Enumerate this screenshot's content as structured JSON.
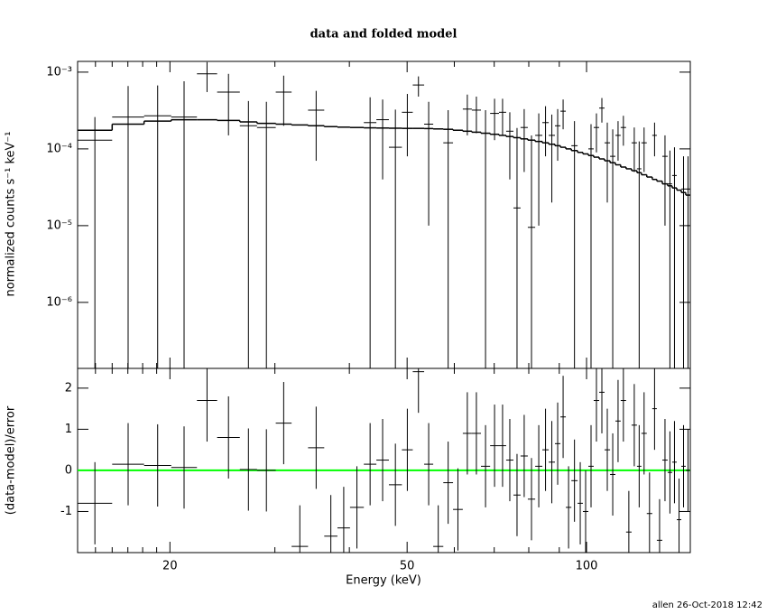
{
  "chart_data": {
    "type": "spectrum",
    "title": "data and folded model",
    "xlabel": "Energy (keV)",
    "footer": "allen 26-Oct-2018 12:42",
    "xscale": "log",
    "xlim": [
      14,
      149.3
    ],
    "xticks": [
      20,
      50,
      100
    ],
    "xminorticks": [
      15,
      16,
      17,
      18,
      19,
      30,
      40,
      60,
      70,
      80,
      90
    ],
    "bins": [
      14.0,
      16.0,
      18.1,
      20.1,
      22.2,
      24.0,
      26.2,
      28.0,
      30.1,
      32.0,
      34.1,
      36.3,
      38.2,
      40.1,
      42.3,
      44.4,
      46.6,
      49.0,
      51.1,
      53.4,
      55.3,
      57.5,
      59.7,
      62.0,
      64.2,
      66.5,
      68.9,
      71.3,
      73.3,
      75.4,
      77.5,
      79.7,
      82.0,
      84.3,
      86.4,
      88.5,
      90.4,
      92.3,
      94.3,
      96.6,
      98.6,
      100.7,
      102.8,
      105.0,
      107.2,
      109.5,
      111.8,
      114.1,
      116.5,
      119.0,
      121.5,
      123.6,
      126.2,
      128.9,
      131.2,
      134.0,
      136.8,
      139.2,
      141.7,
      144.2,
      146.7,
      149.3
    ],
    "panels": [
      {
        "ylabel": "normalized counts s⁻¹ keV⁻¹",
        "yscale": "log",
        "ylim": [
          1.38e-07,
          0.00138
        ],
        "yticks": [
          {
            "value": 0.001,
            "label": "10⁻³"
          },
          {
            "value": 0.0001,
            "label": "10⁻⁴"
          },
          {
            "value": 1e-05,
            "label": "10⁻⁵"
          },
          {
            "value": 1e-06,
            "label": "10⁻⁶"
          }
        ],
        "data": {
          "color": "#000000",
          "values": [
            0.00013,
            0.00026,
            0.00027,
            0.00026,
            0.00095,
            0.00055,
            0.0002,
            0.00019,
            0.00055,
            null,
            0.00032,
            null,
            null,
            null,
            0.00022,
            0.00024,
            0.000105,
            0.0003,
            0.00068,
            0.00021,
            null,
            0.00012,
            null,
            0.00033,
            0.00032,
            0.00016,
            0.00029,
            0.0003,
            0.00017,
            1.7e-05,
            0.00019,
            9.5e-06,
            0.00015,
            0.00022,
            0.00015,
            0.0002,
            0.00031,
            null,
            0.00011,
            null,
            null,
            0.0001,
            0.00019,
            0.00034,
            0.00012,
            8e-05,
            0.00015,
            0.00019,
            null,
            0.00012,
            5.5e-05,
            0.00012,
            null,
            0.00015,
            null,
            8e-05,
            3.5e-05,
            4.5e-05,
            null,
            3e-05,
            3e-05
          ],
          "errors": [
            0.00013,
            0.0004,
            0.0004,
            0.0005,
            0.0004,
            0.0004,
            0.00022,
            0.00022,
            0.00035,
            null,
            0.00025,
            null,
            null,
            null,
            0.00025,
            0.0002,
            0.00022,
            0.00022,
            0.0002,
            0.0002,
            null,
            0.0002,
            null,
            0.00018,
            0.00016,
            0.00016,
            0.00016,
            0.00015,
            0.00013,
            0.00017,
            0.00014,
            0.00014,
            0.00014,
            0.00014,
            0.00013,
            0.00013,
            0.00013,
            null,
            0.00012,
            null,
            null,
            0.00011,
            0.0001,
            0.00012,
            0.0001,
            0.0001,
            8e-05,
            8e-05,
            null,
            7e-05,
            7e-05,
            7e-05,
            null,
            7e-05,
            null,
            7e-05,
            6e-05,
            6e-05,
            null,
            5e-05,
            5e-05
          ]
        },
        "model": {
          "color": "#000000",
          "values": [
            0.000175,
            0.00021,
            0.00023,
            0.00024,
            0.00024,
            0.000235,
            0.000225,
            0.000215,
            0.00021,
            0.000205,
            0.0002,
            0.000195,
            0.000192,
            0.00019,
            0.000188,
            0.000187,
            0.000186,
            0.000185,
            0.000185,
            0.000184,
            0.000182,
            0.00018,
            0.000175,
            0.00017,
            0.000165,
            0.00016,
            0.000155,
            0.00015,
            0.000145,
            0.00014,
            0.000135,
            0.00013,
            0.000125,
            0.00012,
            0.000115,
            0.00011,
            0.000105,
            0.0001,
            9.5e-05,
            9e-05,
            8.6e-05,
            8.2e-05,
            7.8e-05,
            7.4e-05,
            7e-05,
            6.6e-05,
            6.2e-05,
            5.8e-05,
            5.5e-05,
            5.2e-05,
            4.9e-05,
            4.6e-05,
            4.3e-05,
            4e-05,
            3.8e-05,
            3.5e-05,
            3.3e-05,
            3.1e-05,
            2.9e-05,
            2.7e-05,
            2.5e-05
          ]
        }
      },
      {
        "ylabel": "(data-model)/error",
        "yscale": "linear",
        "ylim": [
          -2.0,
          2.48
        ],
        "yticks": [
          -1,
          0,
          1,
          2
        ],
        "hline": {
          "value": 0,
          "color": "#00ff00"
        },
        "data": {
          "color": "#000000",
          "values": [
            -0.8,
            0.15,
            0.12,
            0.07,
            1.7,
            0.8,
            0.02,
            0.0,
            1.15,
            -1.85,
            0.55,
            -1.6,
            -1.4,
            -0.9,
            0.15,
            0.25,
            -0.35,
            0.5,
            2.4,
            0.15,
            -1.85,
            -0.3,
            -0.95,
            0.9,
            0.9,
            0.1,
            0.6,
            0.6,
            0.25,
            -0.6,
            0.35,
            -0.7,
            0.1,
            0.5,
            0.2,
            0.65,
            1.3,
            -0.9,
            -0.25,
            -0.8,
            -1.0,
            0.1,
            1.7,
            1.9,
            0.5,
            -0.1,
            1.2,
            1.7,
            -1.5,
            1.1,
            0.1,
            0.9,
            -1.05,
            1.5,
            -1.7,
            0.25,
            -0.05,
            0.2,
            -1.2,
            0.1,
            0.0
          ],
          "errors": [
            1,
            1,
            1,
            1,
            1,
            1,
            1,
            1,
            1,
            1,
            1,
            1,
            1,
            1,
            1,
            1,
            1,
            1,
            1,
            1,
            1,
            1,
            1,
            1,
            1,
            1,
            1,
            1,
            1,
            1,
            1,
            1,
            1,
            1,
            1,
            1,
            1,
            1,
            1,
            1,
            1,
            1,
            1,
            1,
            1,
            1,
            1,
            1,
            1,
            1,
            1,
            1,
            1,
            1,
            1,
            1,
            1,
            1,
            1,
            1,
            1
          ]
        }
      }
    ]
  }
}
